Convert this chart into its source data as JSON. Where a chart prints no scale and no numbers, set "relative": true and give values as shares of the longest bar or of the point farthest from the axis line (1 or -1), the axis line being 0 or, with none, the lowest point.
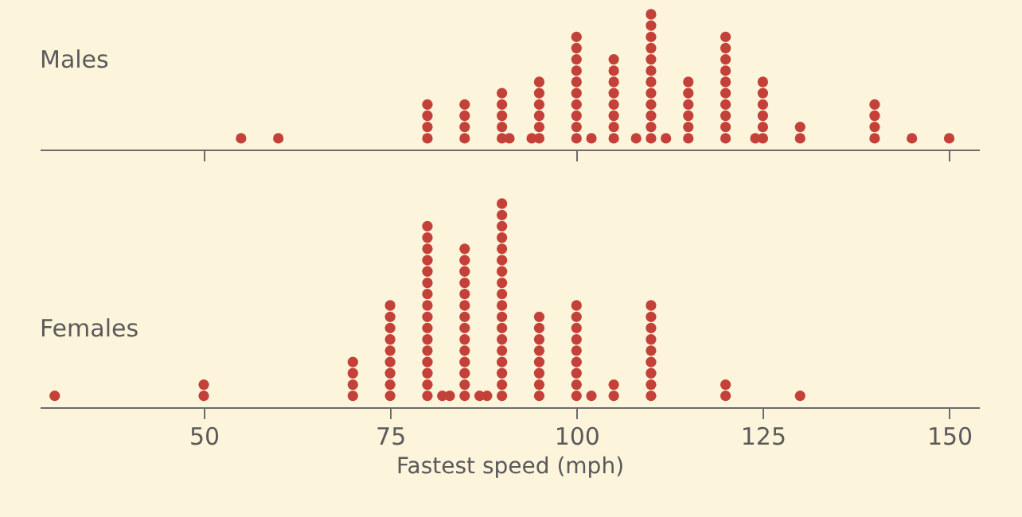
{
  "chart_data": [
    {
      "type": "scatter",
      "title": "Males",
      "color": "#c4413a",
      "marker": "circle",
      "relative": true,
      "xlim": [
        28,
        154
      ],
      "xticks": [
        50,
        100,
        150
      ],
      "tick_labels": false,
      "x": [
        55,
        60,
        80,
        80,
        80,
        80,
        85,
        85,
        85,
        85,
        90,
        90,
        90,
        90,
        90,
        91,
        94,
        95,
        95,
        95,
        95,
        95,
        95,
        100,
        100,
        100,
        100,
        100,
        100,
        100,
        100,
        100,
        100,
        102,
        105,
        105,
        105,
        105,
        105,
        105,
        105,
        105,
        108,
        110,
        110,
        110,
        110,
        110,
        110,
        110,
        110,
        110,
        110,
        110,
        110,
        112,
        115,
        115,
        115,
        115,
        115,
        115,
        120,
        120,
        120,
        120,
        120,
        120,
        120,
        120,
        120,
        120,
        124,
        125,
        125,
        125,
        125,
        125,
        125,
        130,
        130,
        140,
        140,
        140,
        140,
        145,
        150
      ],
      "values": [
        0.083,
        0.083,
        0.083,
        0.167,
        0.25,
        0.333,
        0.083,
        0.167,
        0.25,
        0.333,
        0.083,
        0.167,
        0.25,
        0.333,
        0.417,
        0.083,
        0.083,
        0.083,
        0.167,
        0.25,
        0.333,
        0.417,
        0.5,
        0.083,
        0.167,
        0.25,
        0.333,
        0.417,
        0.5,
        0.583,
        0.667,
        0.75,
        0.833,
        0.083,
        0.083,
        0.167,
        0.25,
        0.333,
        0.417,
        0.5,
        0.583,
        0.667,
        0.083,
        0.083,
        0.167,
        0.25,
        0.333,
        0.417,
        0.5,
        0.583,
        0.667,
        0.75,
        0.833,
        0.917,
        1,
        0.083,
        0.083,
        0.167,
        0.25,
        0.333,
        0.417,
        0.5,
        0.083,
        0.167,
        0.25,
        0.333,
        0.417,
        0.5,
        0.583,
        0.667,
        0.75,
        0.833,
        0.083,
        0.083,
        0.167,
        0.25,
        0.333,
        0.417,
        0.5,
        0.083,
        0.167,
        0.083,
        0.167,
        0.25,
        0.333,
        0.083,
        0.083
      ]
    },
    {
      "type": "scatter",
      "title": "Females",
      "xlabel": "Fastest speed (mph)",
      "color": "#c4413a",
      "marker": "circle",
      "relative": true,
      "xlim": [
        28,
        154
      ],
      "xticks": [
        50,
        75,
        100,
        125,
        150
      ],
      "tick_labels": "x",
      "x": [
        30,
        50,
        50,
        70,
        70,
        70,
        70,
        75,
        75,
        75,
        75,
        75,
        75,
        75,
        75,
        75,
        80,
        80,
        80,
        80,
        80,
        80,
        80,
        80,
        80,
        80,
        80,
        80,
        80,
        80,
        80,
        80,
        82,
        83,
        85,
        85,
        85,
        85,
        85,
        85,
        85,
        85,
        85,
        85,
        85,
        85,
        85,
        85,
        87,
        88,
        90,
        90,
        90,
        90,
        90,
        90,
        90,
        90,
        90,
        90,
        90,
        90,
        90,
        90,
        90,
        90,
        90,
        90,
        95,
        95,
        95,
        95,
        95,
        95,
        95,
        95,
        100,
        100,
        100,
        100,
        100,
        100,
        100,
        100,
        100,
        102,
        105,
        105,
        110,
        110,
        110,
        110,
        110,
        110,
        110,
        110,
        110,
        120,
        120,
        130
      ],
      "values": [
        0.056,
        0.056,
        0.111,
        0.056,
        0.111,
        0.167,
        0.222,
        0.056,
        0.111,
        0.167,
        0.222,
        0.278,
        0.333,
        0.389,
        0.444,
        0.5,
        0.056,
        0.111,
        0.167,
        0.222,
        0.278,
        0.333,
        0.389,
        0.444,
        0.5,
        0.556,
        0.611,
        0.667,
        0.722,
        0.778,
        0.833,
        0.889,
        0.056,
        0.056,
        0.056,
        0.111,
        0.167,
        0.222,
        0.278,
        0.333,
        0.389,
        0.444,
        0.5,
        0.556,
        0.611,
        0.667,
        0.722,
        0.778,
        0.056,
        0.056,
        0.056,
        0.111,
        0.167,
        0.222,
        0.278,
        0.333,
        0.389,
        0.444,
        0.5,
        0.556,
        0.611,
        0.667,
        0.722,
        0.778,
        0.833,
        0.889,
        0.944,
        1,
        0.056,
        0.111,
        0.167,
        0.222,
        0.278,
        0.333,
        0.389,
        0.444,
        0.056,
        0.111,
        0.167,
        0.222,
        0.278,
        0.333,
        0.389,
        0.444,
        0.5,
        0.056,
        0.056,
        0.111,
        0.056,
        0.111,
        0.167,
        0.222,
        0.278,
        0.333,
        0.389,
        0.444,
        0.5,
        0.056,
        0.111,
        0.056
      ]
    }
  ]
}
